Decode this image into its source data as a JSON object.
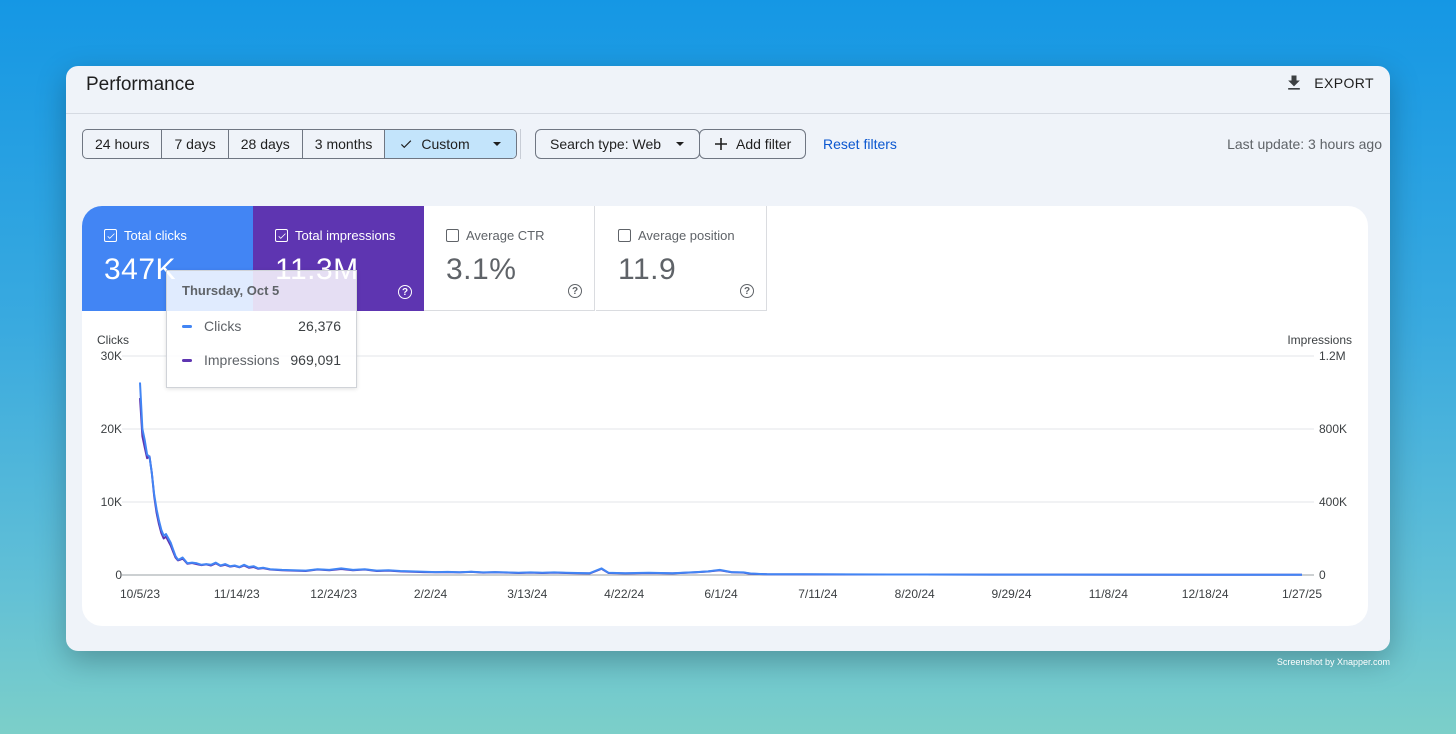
{
  "header": {
    "title": "Performance",
    "export_label": "EXPORT",
    "export_icon": "download-icon"
  },
  "toolbar": {
    "date_ranges": [
      "24 hours",
      "7 days",
      "28 days",
      "3 months"
    ],
    "custom_label": "Custom",
    "search_type_label": "Search type: Web",
    "add_filter_label": "Add filter",
    "reset_label": "Reset filters",
    "last_update": "Last update: 3 hours ago"
  },
  "metrics": [
    {
      "label": "Total clicks",
      "value": "347K",
      "checked": true,
      "color": "#4285f4"
    },
    {
      "label": "Total impressions",
      "value": "11.3M",
      "checked": true,
      "color": "#5e35b1"
    },
    {
      "label": "Average CTR",
      "value": "3.1%",
      "checked": false
    },
    {
      "label": "Average position",
      "value": "11.9",
      "checked": false
    }
  ],
  "tooltip": {
    "date": "Thursday, Oct 5",
    "clicks_label": "Clicks",
    "clicks_value": "26,376",
    "impressions_label": "Impressions",
    "impressions_value": "969,091"
  },
  "chart_data": {
    "type": "line",
    "left_axis": {
      "label": "Clicks",
      "ticks": [
        "0",
        "10K",
        "20K",
        "30K"
      ],
      "range": [
        0,
        30000
      ]
    },
    "right_axis": {
      "label": "Impressions",
      "ticks": [
        "0",
        "400K",
        "800K",
        "1.2M"
      ],
      "range": [
        0,
        1200000
      ]
    },
    "x_tick_labels": [
      "10/5/23",
      "11/14/23",
      "12/24/23",
      "2/2/24",
      "3/13/24",
      "4/22/24",
      "6/1/24",
      "7/11/24",
      "8/20/24",
      "9/29/24",
      "11/8/24",
      "12/18/24",
      "1/27/25"
    ],
    "x_range_days": [
      0,
      491
    ],
    "series": [
      {
        "name": "Clicks",
        "color": "#4285f4",
        "axis": "left",
        "points": [
          [
            0,
            26376
          ],
          [
            1,
            20000
          ],
          [
            2,
            18500
          ],
          [
            3,
            16500
          ],
          [
            4,
            16200
          ],
          [
            5,
            14000
          ],
          [
            6,
            11000
          ],
          [
            7,
            9000
          ],
          [
            8,
            7500
          ],
          [
            9,
            6200
          ],
          [
            10,
            5400
          ],
          [
            11,
            5600
          ],
          [
            12,
            5000
          ],
          [
            13,
            4400
          ],
          [
            14,
            3500
          ],
          [
            15,
            2600
          ],
          [
            16,
            2100
          ],
          [
            17,
            2200
          ],
          [
            18,
            2400
          ],
          [
            19,
            2000
          ],
          [
            20,
            1600
          ],
          [
            22,
            1700
          ],
          [
            24,
            1600
          ],
          [
            26,
            1400
          ],
          [
            28,
            1500
          ],
          [
            30,
            1400
          ],
          [
            32,
            1700
          ],
          [
            34,
            1300
          ],
          [
            36,
            1500
          ],
          [
            38,
            1200
          ],
          [
            40,
            1300
          ],
          [
            42,
            1100
          ],
          [
            44,
            1400
          ],
          [
            46,
            1100
          ],
          [
            48,
            1200
          ],
          [
            50,
            900
          ],
          [
            52,
            1000
          ],
          [
            55,
            800
          ],
          [
            60,
            700
          ],
          [
            65,
            650
          ],
          [
            70,
            600
          ],
          [
            75,
            800
          ],
          [
            80,
            700
          ],
          [
            85,
            900
          ],
          [
            90,
            700
          ],
          [
            95,
            800
          ],
          [
            100,
            600
          ],
          [
            105,
            650
          ],
          [
            110,
            550
          ],
          [
            115,
            500
          ],
          [
            120,
            450
          ],
          [
            125,
            400
          ],
          [
            130,
            420
          ],
          [
            135,
            380
          ],
          [
            140,
            450
          ],
          [
            145,
            350
          ],
          [
            150,
            400
          ],
          [
            155,
            350
          ],
          [
            160,
            300
          ],
          [
            165,
            350
          ],
          [
            170,
            300
          ],
          [
            175,
            350
          ],
          [
            180,
            300
          ],
          [
            185,
            280
          ],
          [
            190,
            250
          ],
          [
            195,
            900
          ],
          [
            198,
            300
          ],
          [
            205,
            250
          ],
          [
            215,
            300
          ],
          [
            225,
            250
          ],
          [
            235,
            400
          ],
          [
            240,
            500
          ],
          [
            245,
            700
          ],
          [
            250,
            400
          ],
          [
            255,
            350
          ],
          [
            258,
            200
          ],
          [
            265,
            100
          ],
          [
            280,
            90
          ],
          [
            300,
            80
          ],
          [
            330,
            70
          ],
          [
            360,
            60
          ],
          [
            390,
            55
          ],
          [
            420,
            50
          ],
          [
            450,
            45
          ],
          [
            480,
            40
          ],
          [
            491,
            40
          ]
        ]
      },
      {
        "name": "Impressions",
        "color": "#5e35b1",
        "axis": "right",
        "points": [
          [
            0,
            969091
          ],
          [
            1,
            760000
          ],
          [
            2,
            700000
          ],
          [
            3,
            640000
          ],
          [
            4,
            650000
          ],
          [
            5,
            560000
          ],
          [
            6,
            430000
          ],
          [
            7,
            340000
          ],
          [
            8,
            280000
          ],
          [
            9,
            230000
          ],
          [
            10,
            200000
          ],
          [
            11,
            210000
          ],
          [
            12,
            185000
          ],
          [
            13,
            160000
          ],
          [
            14,
            128000
          ],
          [
            15,
            96000
          ],
          [
            16,
            80000
          ],
          [
            17,
            84000
          ],
          [
            18,
            90000
          ],
          [
            19,
            76000
          ],
          [
            20,
            62000
          ],
          [
            22,
            66000
          ],
          [
            24,
            60000
          ],
          [
            26,
            54000
          ],
          [
            28,
            58000
          ],
          [
            30,
            52000
          ],
          [
            32,
            64000
          ],
          [
            34,
            50000
          ],
          [
            36,
            56000
          ],
          [
            38,
            46000
          ],
          [
            40,
            50000
          ],
          [
            42,
            42000
          ],
          [
            44,
            52000
          ],
          [
            46,
            40000
          ],
          [
            48,
            44000
          ],
          [
            50,
            34000
          ],
          [
            52,
            38000
          ],
          [
            55,
            30000
          ],
          [
            60,
            26000
          ],
          [
            65,
            24000
          ],
          [
            70,
            22000
          ],
          [
            75,
            30000
          ],
          [
            80,
            26000
          ],
          [
            85,
            33000
          ],
          [
            90,
            26000
          ],
          [
            95,
            30000
          ],
          [
            100,
            22000
          ],
          [
            105,
            24000
          ],
          [
            110,
            20000
          ],
          [
            115,
            18000
          ],
          [
            120,
            16000
          ],
          [
            125,
            15000
          ],
          [
            130,
            16000
          ],
          [
            135,
            14000
          ],
          [
            140,
            17000
          ],
          [
            145,
            13000
          ],
          [
            150,
            15000
          ],
          [
            155,
            13000
          ],
          [
            160,
            11000
          ],
          [
            165,
            13000
          ],
          [
            170,
            11000
          ],
          [
            175,
            13000
          ],
          [
            180,
            11000
          ],
          [
            185,
            10000
          ],
          [
            190,
            9000
          ],
          [
            195,
            34000
          ],
          [
            198,
            11000
          ],
          [
            205,
            9000
          ],
          [
            215,
            11000
          ],
          [
            225,
            9000
          ],
          [
            235,
            15000
          ],
          [
            240,
            19000
          ],
          [
            245,
            26000
          ],
          [
            250,
            15000
          ],
          [
            255,
            13000
          ],
          [
            258,
            7000
          ],
          [
            265,
            4000
          ],
          [
            280,
            3500
          ],
          [
            300,
            3000
          ],
          [
            330,
            2600
          ],
          [
            360,
            2300
          ],
          [
            390,
            2100
          ],
          [
            420,
            1900
          ],
          [
            450,
            1700
          ],
          [
            480,
            1500
          ],
          [
            491,
            1500
          ]
        ]
      }
    ]
  },
  "credit": "Screenshot by Xnapper.com"
}
